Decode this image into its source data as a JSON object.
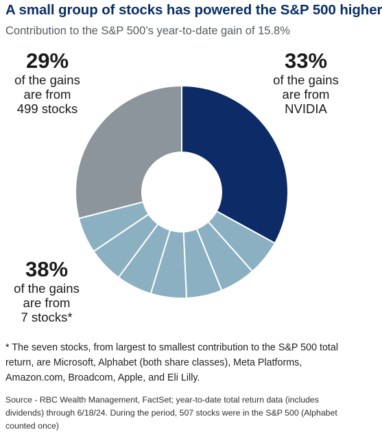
{
  "title": "A small group of stocks has powered the S&P 500 higher",
  "subtitle": "Contribution to the S&P 500’s year-to-date gain of 15.8%",
  "callouts": {
    "others": {
      "pct": "29%",
      "lines": [
        "of the gains",
        "are from",
        "499 stocks"
      ]
    },
    "nvidia": {
      "pct": "33%",
      "lines": [
        "of the gains",
        "are from",
        "NVIDIA"
      ]
    },
    "seven": {
      "pct": "38%",
      "lines": [
        "of the gains",
        "are from",
        "7 stocks*"
      ]
    }
  },
  "footnote": "* The seven stocks, from largest to smallest contribution to the S&P 500 total return, are Microsoft, Alphabet (both share classes), Meta Platforms, Amazon.com, Broadcom, Apple, and Eli Lilly.",
  "source": "Source - RBC Wealth Management, FactSet; year-to-date total return data (includes dividends) through 6/18/24. During the period, 507 stocks were in the S&P 500 (Alphabet counted once)",
  "colors": {
    "nvidia": "#0d2b66",
    "seven": "#8bb0c2",
    "others": "#8c959b",
    "separator": "#ffffff"
  },
  "chart_data": {
    "type": "pie",
    "donut": true,
    "unit": "%",
    "categories": [
      "NVIDIA",
      "7 stocks*",
      "499 stocks"
    ],
    "values": [
      33,
      38,
      29
    ],
    "seven_stock_segments": 7
  }
}
